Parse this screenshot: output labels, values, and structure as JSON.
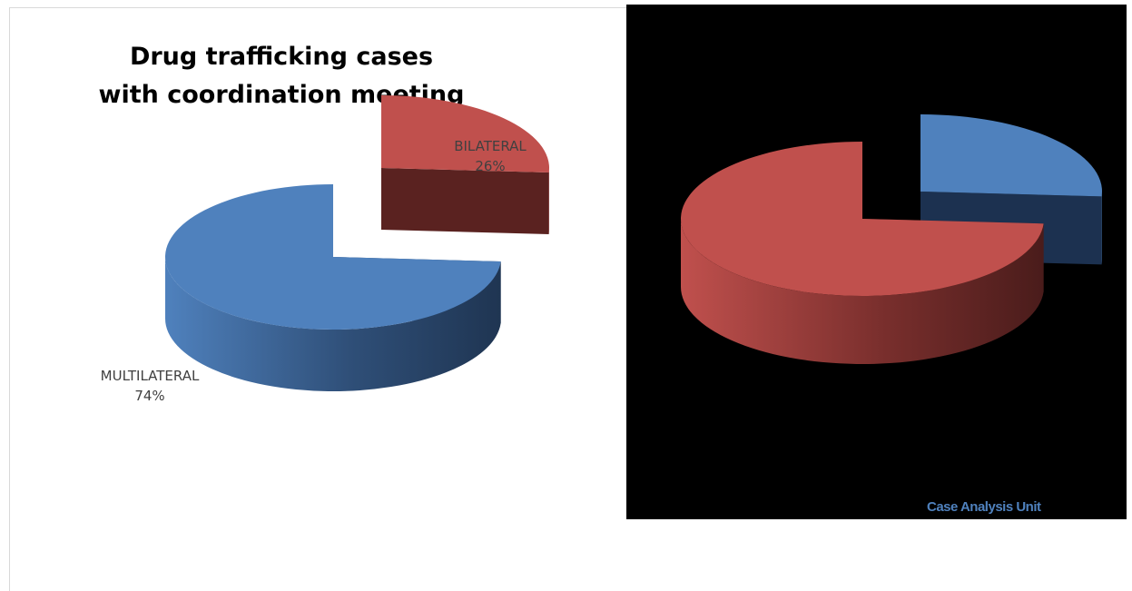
{
  "chart_data": [
    {
      "type": "pie",
      "title": [
        "Drug trafficking cases",
        "with coordination meeting"
      ],
      "slices": [
        {
          "label": "BILATERAL",
          "value": 26,
          "display": "26%",
          "color": "#c0504d",
          "exploded": true
        },
        {
          "label": "MULTILATERAL",
          "value": 74,
          "display": "74%",
          "color": "#4f81bd",
          "exploded": false
        }
      ]
    },
    {
      "type": "pie",
      "title": "",
      "slices": [
        {
          "value": 26,
          "color": "#4f81bd",
          "exploded": true
        },
        {
          "value": 74,
          "color": "#c0504d",
          "exploded": false
        }
      ],
      "background": "#000000"
    }
  ],
  "credit": "Case Analysis Unit"
}
